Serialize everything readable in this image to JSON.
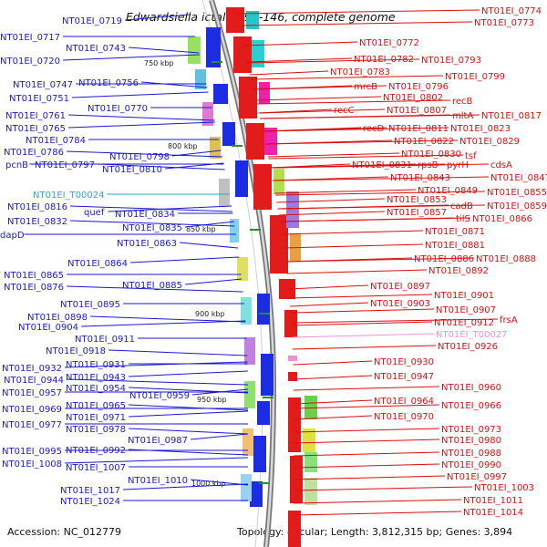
{
  "title": "Edwardsiella ictaluri 93-146, complete genome",
  "accession": "Accession: NC_012779",
  "topology": "Topology: circular; Length: 3,812,315 bp; Genes: 3,894",
  "colors": {
    "minus_strand": "#1a1acc",
    "plus_strand": "#d81010",
    "trna": "#2aa8c8",
    "pseudo": "#f090d0",
    "backbone": "#9a9a9a",
    "tick": "#2e8b2e"
  },
  "scale_ticks": [
    "750 kbp",
    "800 kbp",
    "850 kbp",
    "900 kbp",
    "950 kbp",
    "1000 kbp"
  ],
  "left_labels": [
    "NT01EI_0719",
    "NT01EI_0717",
    "NT01EI_0743",
    "NT01EI_0720",
    "NT01EI_0747",
    "NT01EI_0756",
    "NT01EI_0751",
    "NT01EI_0770",
    "NT01EI_0761",
    "NT01EI_0765",
    "NT01EI_0784",
    "NT01EI_0786",
    "NT01EI_0798",
    "pcnB",
    "NT01EI_0797",
    "NT01EI_0810",
    "NT01EI_T00024",
    "NT01EI_0816",
    "quef",
    "NT01EI_0834",
    "NT01EI_0832",
    "NT01EI_0835",
    "dapD",
    "NT01EI_0863",
    "NT01EI_0864",
    "NT01EI_0865",
    "NT01EI_0876",
    "NT01EI_0885",
    "NT01EI_0895",
    "NT01EI_0898",
    "NT01EI_0904",
    "NT01EI_0911",
    "NT01EI_0918",
    "NT01EI_0932",
    "NT01EI_0931",
    "NT01EI_0944",
    "NT01EI_0943",
    "NT01EI_0957",
    "NT01EI_0954",
    "NT01EI_0959",
    "NT01EI_0969",
    "NT01EI_0965",
    "NT01EI_0971",
    "NT01EI_0977",
    "NT01EI_0978",
    "NT01EI_0987",
    "NT01EI_0995",
    "NT01EI_0992",
    "NT01EI_1008",
    "NT01EI_1007",
    "NT01EI_1010",
    "NT01EI_1017",
    "NT01EI_1024"
  ],
  "right_labels": [
    "NT01EI_0774",
    "NT01EI_0773",
    "NT01EI_0772",
    "NT01EI_0782",
    "NT01EI_0793",
    "NT01EI_0783",
    "NT01EI_0799",
    "mrcB",
    "NT01EI_0796",
    "NT01EI_0802",
    "recB",
    "recC",
    "NT01EI_0807",
    "mltA",
    "NT01EI_0817",
    "recD",
    "NT01EI_0811",
    "NT01EI_0823",
    "NT01EI_0822",
    "NT01EI_0829",
    "NT01EI_0830",
    "tsf",
    "NT01EI_0831",
    "rpsB",
    "pyrH",
    "cdsA",
    "NT01EI_0843",
    "NT01EI_0847",
    "NT01EI_0849",
    "NT01EI_0855",
    "NT01EI_0853",
    "cadB",
    "NT01EI_0859",
    "NT01EI_0857",
    "tilS",
    "NT01EI_0866",
    "NT01EI_0871",
    "NT01EI_0881",
    "NT01EI_0886",
    "NT01EI_0888",
    "NT01EI_0892",
    "NT01EI_0897",
    "NT01EI_0901",
    "NT01EI_0903",
    "NT01EI_0907",
    "NT01EI_0912",
    "frsA",
    "NT01EI_T00027",
    "NT01EI_0926",
    "NT01EI_0930",
    "NT01EI_0947",
    "NT01EI_0960",
    "NT01EI_0964",
    "NT01EI_0966",
    "NT01EI_0970",
    "NT01EI_0973",
    "NT01EI_0980",
    "NT01EI_0988",
    "NT01EI_0990",
    "NT01EI_0997",
    "NT01EI_1003",
    "NT01EI_1011",
    "NT01EI_1014"
  ]
}
